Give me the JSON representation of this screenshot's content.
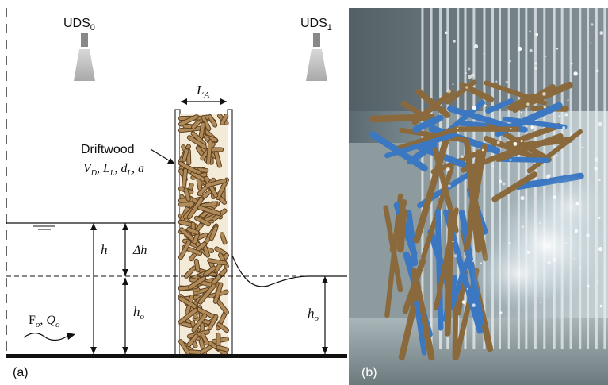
{
  "panel_a": {
    "label": "(a)",
    "sensor_upstream": {
      "name": "UDS",
      "sub": "0"
    },
    "sensor_downstream": {
      "name": "UDS",
      "sub": "1"
    },
    "rack_width_label": {
      "main": "L",
      "sub": "A"
    },
    "driftwood": {
      "title": "Driftwood",
      "params": [
        {
          "main": "V",
          "sub": "D"
        },
        {
          "main": "L",
          "sub": "L"
        },
        {
          "main": "d",
          "sub": "L"
        },
        {
          "main": "a",
          "sub": ""
        }
      ]
    },
    "upstream_depth_label": "h",
    "backwater_rise_label": "Δh",
    "approach_depth_label": {
      "main": "h",
      "sub": "o"
    },
    "downstream_depth_label": {
      "main": "h",
      "sub": "o"
    },
    "inflow": {
      "froude": {
        "main": "F",
        "sub": "o"
      },
      "discharge": {
        "main": "Q",
        "sub": "o"
      }
    },
    "colors": {
      "log_fill": "#b08a58",
      "log_stroke": "#5a3e1e",
      "sensor": "#888888"
    }
  },
  "panel_b": {
    "label": "(b)",
    "colors": {
      "background": "#7c8a8f",
      "water": "#d8e6ee",
      "blue_log": "#3c78c2",
      "brown_log": "#8a6a3c"
    }
  }
}
